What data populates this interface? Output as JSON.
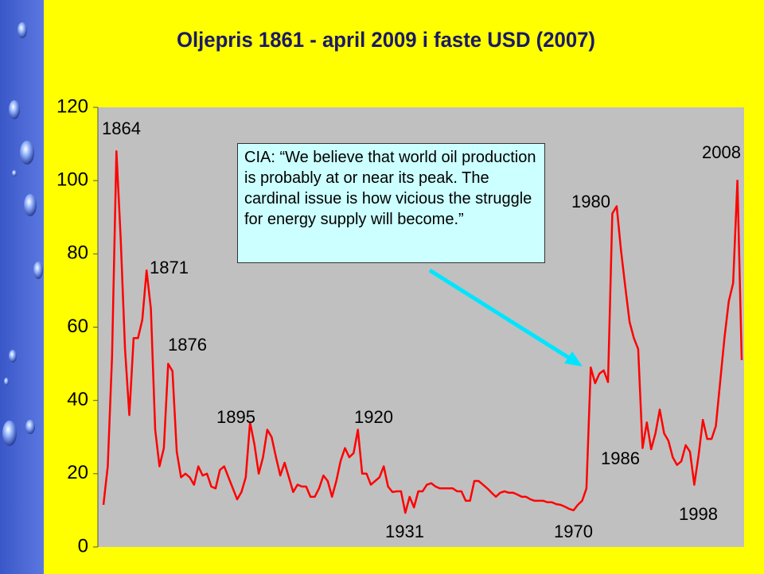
{
  "chart_data": {
    "type": "line",
    "title": "Oljepris 1861 - april 2009 i faste USD (2007)",
    "callout": "CIA: “We believe that world oil production is probably at or near its peak. The cardinal issue is how vicious the struggle for energy supply will become.”",
    "color": "#ff0000",
    "xlim": [
      1861,
      2009
    ],
    "ylim": [
      0,
      120
    ],
    "yticks": [
      0,
      20,
      40,
      60,
      80,
      100,
      120
    ],
    "x": [
      1861,
      1862,
      1863,
      1864,
      1865,
      1866,
      1867,
      1868,
      1869,
      1870,
      1871,
      1872,
      1873,
      1874,
      1875,
      1876,
      1877,
      1878,
      1879,
      1880,
      1881,
      1882,
      1883,
      1884,
      1885,
      1886,
      1887,
      1888,
      1889,
      1890,
      1891,
      1892,
      1893,
      1894,
      1895,
      1896,
      1897,
      1898,
      1899,
      1900,
      1901,
      1902,
      1903,
      1904,
      1905,
      1906,
      1907,
      1908,
      1909,
      1910,
      1911,
      1912,
      1913,
      1914,
      1915,
      1916,
      1917,
      1918,
      1919,
      1920,
      1921,
      1922,
      1923,
      1924,
      1925,
      1926,
      1927,
      1928,
      1929,
      1930,
      1931,
      1932,
      1933,
      1934,
      1935,
      1936,
      1937,
      1938,
      1939,
      1940,
      1941,
      1942,
      1943,
      1944,
      1945,
      1946,
      1947,
      1948,
      1949,
      1950,
      1951,
      1952,
      1953,
      1954,
      1955,
      1956,
      1957,
      1958,
      1959,
      1960,
      1961,
      1962,
      1963,
      1964,
      1965,
      1966,
      1967,
      1968,
      1969,
      1970,
      1971,
      1972,
      1973,
      1974,
      1975,
      1976,
      1977,
      1978,
      1979,
      1980,
      1981,
      1982,
      1983,
      1984,
      1985,
      1986,
      1987,
      1988,
      1989,
      1990,
      1991,
      1992,
      1993,
      1994,
      1995,
      1996,
      1997,
      1998,
      1999,
      2000,
      2001,
      2002,
      2003,
      2004,
      2005,
      2006,
      2007,
      2008,
      2009
    ],
    "values": [
      11.5,
      22,
      52,
      108,
      84,
      54,
      36,
      57,
      57,
      62,
      75.5,
      65,
      32,
      22,
      27,
      50,
      48,
      26,
      19,
      20,
      19,
      17,
      22,
      19.5,
      20,
      16.5,
      16,
      21,
      22,
      19,
      16,
      13,
      15,
      19,
      34,
      28,
      20,
      24.5,
      32,
      30,
      24.5,
      19.5,
      23,
      19,
      15,
      17,
      16.5,
      16.5,
      13.7,
      13.7,
      16,
      19.5,
      18,
      13.7,
      18,
      23.5,
      27,
      24.5,
      25.6,
      32,
      20,
      20,
      17,
      18,
      19,
      22,
      16.5,
      15,
      15.2,
      15.2,
      9.3,
      13.7,
      10.8,
      15.2,
      15.2,
      17,
      17.4,
      16.5,
      16,
      16,
      16,
      16,
      15.2,
      15.2,
      12.6,
      12.6,
      18,
      18,
      17,
      16,
      14.8,
      13.7,
      14.8,
      15.2,
      14.8,
      14.8,
      14.3,
      13.7,
      13.7,
      13,
      12.6,
      12.6,
      12.6,
      12.2,
      12.2,
      11.7,
      11.5,
      11,
      10.4,
      10,
      11.5,
      12.6,
      16,
      49,
      44.7,
      47.3,
      48.2,
      45,
      91,
      93,
      81,
      71,
      61.4,
      57,
      54,
      27,
      34,
      26.7,
      31,
      37.5,
      31,
      29,
      24.5,
      22.4,
      23.4,
      27.8,
      26,
      17,
      25,
      34.7,
      29.5,
      29.5,
      33,
      45,
      57,
      67,
      72,
      100,
      51
    ],
    "annotations": [
      "1864",
      "1871",
      "1876",
      "1895",
      "1920",
      "1931",
      "1970",
      "1980",
      "1986",
      "1998",
      "2008"
    ]
  }
}
